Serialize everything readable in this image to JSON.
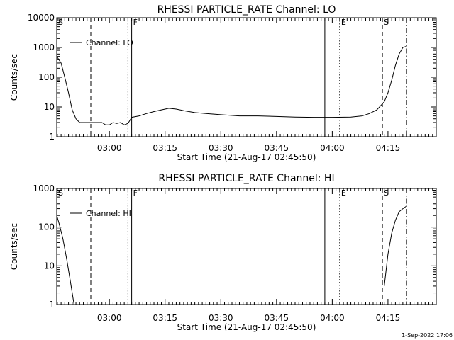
{
  "footer": {
    "timestamp": "1-Sep-2022 17:06"
  },
  "chart_data": [
    {
      "type": "line",
      "title": "RHESSI PARTICLE_RATE Channel: LO",
      "xlabel": "Start Time (21-Aug-17 02:45:50)",
      "ylabel": "Counts/sec",
      "y_scale": "log",
      "ylim": [
        1,
        10000
      ],
      "y_ticks": [
        "1",
        "10",
        "100",
        "1000",
        "10000"
      ],
      "xlim": [
        "02:45:50",
        "04:28:00"
      ],
      "x_ticks": [
        "03:00",
        "03:15",
        "03:30",
        "03:45",
        "04:00",
        "04:15"
      ],
      "legend": {
        "position": "top-left",
        "entries": [
          "Channel: LO"
        ]
      },
      "series": [
        {
          "name": "Channel: LO",
          "x": [
            "02:45:50",
            "02:47:00",
            "02:48:00",
            "02:49:00",
            "02:50:00",
            "02:51:00",
            "02:52:00",
            "02:54:00",
            "02:56:00",
            "02:58:00",
            "02:59:00",
            "03:00:00",
            "03:01:00",
            "03:02:00",
            "03:03:00",
            "03:04:00",
            "03:05:00",
            "03:05:30",
            "03:06:00",
            "03:08:00",
            "03:10:00",
            "03:12:00",
            "03:14:00",
            "03:16:00",
            "03:18:00",
            "03:20:00",
            "03:23:00",
            "03:26:00",
            "03:30:00",
            "03:35:00",
            "03:40:00",
            "03:45:00",
            "03:50:00",
            "03:55:00",
            "04:00:00",
            "04:05:00",
            "04:08:00",
            "04:10:00",
            "04:12:00",
            "04:14:00",
            "04:15:00",
            "04:16:00",
            "04:17:00",
            "04:18:00",
            "04:19:00",
            "04:20:00"
          ],
          "y": [
            500,
            300,
            100,
            30,
            8,
            4,
            3,
            3,
            3,
            3,
            2.5,
            2.5,
            3,
            2.8,
            3,
            2.5,
            2.8,
            3.5,
            4.5,
            5,
            6,
            7,
            8,
            9,
            8.5,
            7.5,
            6.5,
            6,
            5.5,
            5,
            5,
            4.8,
            4.6,
            4.5,
            4.5,
            4.6,
            5,
            6,
            8,
            15,
            30,
            80,
            250,
            600,
            1000,
            1100
          ]
        }
      ],
      "markers": [
        {
          "label": "S",
          "time": "02:45:50",
          "style": "solid"
        },
        {
          "label": "",
          "time": "02:55:00",
          "style": "dashed"
        },
        {
          "label": "",
          "time": "03:05:00",
          "style": "dotted"
        },
        {
          "label": "F",
          "time": "03:06:00",
          "style": "solid"
        },
        {
          "label": "",
          "time": "03:58:00",
          "style": "solid"
        },
        {
          "label": "E",
          "time": "04:02:00",
          "style": "dotted"
        },
        {
          "label": "S",
          "time": "04:13:30",
          "style": "dashed"
        },
        {
          "label": "",
          "time": "04:20:00",
          "style": "dashdot"
        }
      ]
    },
    {
      "type": "line",
      "title": "RHESSI PARTICLE_RATE Channel: HI",
      "xlabel": "Start Time (21-Aug-17 02:45:50)",
      "ylabel": "Counts/sec",
      "y_scale": "log",
      "ylim": [
        1,
        1000
      ],
      "y_ticks": [
        "1",
        "10",
        "100",
        "1000"
      ],
      "xlim": [
        "02:45:50",
        "04:28:00"
      ],
      "x_ticks": [
        "03:00",
        "03:15",
        "03:30",
        "03:45",
        "04:00",
        "04:15"
      ],
      "legend": {
        "position": "top-left",
        "entries": [
          "Channel: HI"
        ]
      },
      "series": [
        {
          "name": "Channel: HI",
          "segments": [
            {
              "x": [
                "02:45:50",
                "02:46:30",
                "02:47:30",
                "02:48:30",
                "02:49:30",
                "02:50:00",
                "02:50:30"
              ],
              "y": [
                200,
                120,
                50,
                15,
                4,
                2,
                1
              ]
            },
            {
              "x": [
                "04:14:00",
                "04:15:00",
                "04:16:00",
                "04:17:00",
                "04:18:00",
                "04:19:00",
                "04:20:00"
              ],
              "y": [
                3,
                20,
                70,
                150,
                250,
                300,
                350
              ]
            }
          ]
        }
      ],
      "markers": [
        {
          "label": "S",
          "time": "02:45:50",
          "style": "solid"
        },
        {
          "label": "",
          "time": "02:55:00",
          "style": "dashed"
        },
        {
          "label": "",
          "time": "03:05:00",
          "style": "dotted"
        },
        {
          "label": "F",
          "time": "03:06:00",
          "style": "solid"
        },
        {
          "label": "",
          "time": "03:58:00",
          "style": "solid"
        },
        {
          "label": "E",
          "time": "04:02:00",
          "style": "dotted"
        },
        {
          "label": "S",
          "time": "04:13:30",
          "style": "dashed"
        },
        {
          "label": "",
          "time": "04:20:00",
          "style": "dashdot"
        }
      ]
    }
  ]
}
